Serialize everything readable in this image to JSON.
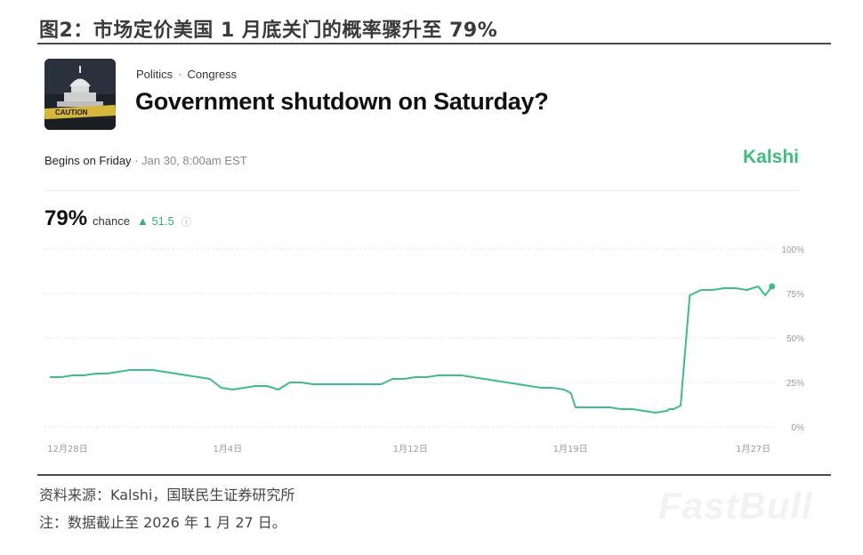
{
  "figure": {
    "title": "图2：市场定价美国 1 月底关门的概率骤升至 79%",
    "source": "资料来源：Kalshi，国联民生证券研究所",
    "note": "注：数据截止至 2026 年 1 月 27 日。",
    "watermark": "FastBull"
  },
  "market": {
    "image_icon": "capitol-caution-photo",
    "image_caption": "CAUTION",
    "category": "Politics",
    "subcategory": "Congress",
    "question": "Government shutdown on Saturday?",
    "begins_label": "Begins on Friday",
    "begins_time": "Jan 30, 8:00am EST",
    "brand": "Kalshi",
    "chance_value": "79%",
    "chance_label": "chance",
    "change": "▲ 51.5",
    "info_icon": "info-circle-icon"
  },
  "colors": {
    "line": "#3fbd86",
    "brand": "#3fbd7e",
    "grid": "#d9d9d9",
    "axis_text": "#9a9a9a"
  },
  "chart_data": {
    "type": "line",
    "title": "",
    "xlabel": "",
    "ylabel": "",
    "ylim": [
      0,
      100
    ],
    "y_ticks": [
      "0%",
      "25%",
      "50%",
      "75%",
      "100%"
    ],
    "y_tick_values": [
      0,
      25,
      50,
      75,
      100
    ],
    "x_ticks": [
      "12月28日",
      "1月4日",
      "1月12日",
      "1月19日",
      "1月27日"
    ],
    "x_tick_days": [
      0,
      7,
      15,
      22,
      30
    ],
    "grid": true,
    "series": [
      {
        "days": [
          0,
          0.5,
          1,
          1.5,
          2,
          2.5,
          3,
          3.5,
          4,
          4.5,
          5,
          5.5,
          6,
          6.5,
          7,
          7.5,
          8,
          8.5,
          9,
          9.5,
          10,
          10.5,
          11,
          11.5,
          12,
          12.5,
          13,
          13.5,
          14,
          14.5,
          15,
          15.5,
          16,
          16.5,
          17,
          17.5,
          18,
          18.5,
          19,
          19.5,
          20,
          20.5,
          21,
          21.5,
          22,
          22.5,
          22.8,
          23,
          23.5,
          24,
          24.5,
          25,
          25.5,
          26,
          26.5,
          27,
          27.1,
          27.3,
          27.6,
          28,
          28.5,
          29,
          29.5,
          30,
          30.5,
          31,
          31.3,
          31.6
        ],
        "values": [
          28,
          28,
          29,
          29,
          30,
          30,
          31,
          32,
          32,
          32,
          31,
          30,
          29,
          28,
          27,
          22,
          21,
          22,
          23,
          23,
          21,
          25,
          25,
          24,
          24,
          24,
          24,
          24,
          24,
          24,
          27,
          27,
          28,
          28,
          29,
          29,
          29,
          28,
          27,
          26,
          25,
          24,
          23,
          22,
          22,
          21,
          19,
          11,
          11,
          11,
          11,
          10,
          10,
          9,
          8,
          9,
          10,
          10,
          12,
          74,
          77,
          77,
          78,
          78,
          77,
          79,
          74,
          79
        ]
      }
    ],
    "end_marker_value": 79
  }
}
